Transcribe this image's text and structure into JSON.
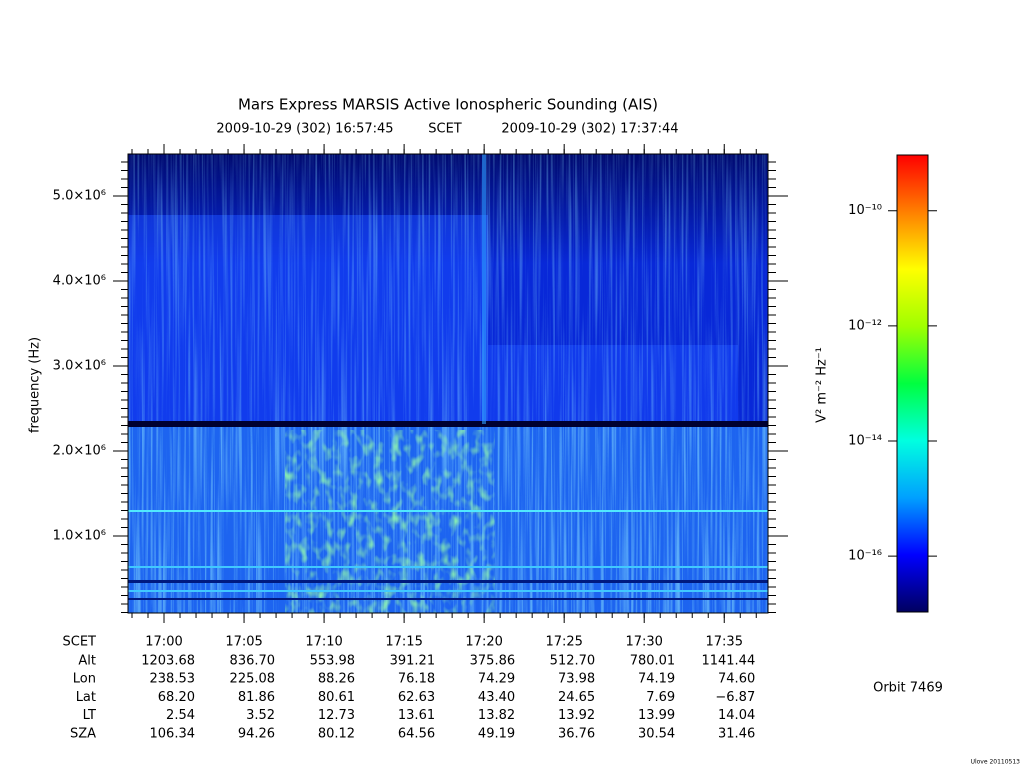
{
  "chart_data": {
    "type": "spectrogram",
    "title": "Mars Express MARSIS Active Ionospheric Sounding (AIS)",
    "subtitle": {
      "start": "2009-10-29 (302) 16:57:45",
      "system": "SCET",
      "end": "2009-10-29 (302) 17:37:44"
    },
    "y_label": "frequency (Hz)",
    "ylim": [
      94000,
      5494000
    ],
    "yticks": [
      {
        "value": 1000000,
        "label": "1.0×10⁶"
      },
      {
        "value": 2000000,
        "label": "2.0×10⁶"
      },
      {
        "value": 3000000,
        "label": "3.0×10⁶"
      },
      {
        "value": 4000000,
        "label": "4.0×10⁶"
      },
      {
        "value": 5000000,
        "label": "5.0×10⁶"
      }
    ],
    "xlim": [
      61065,
      63464
    ],
    "xticks": [
      {
        "value": 61200,
        "label": "17:00"
      },
      {
        "value": 61500,
        "label": "17:05"
      },
      {
        "value": 61800,
        "label": "17:10"
      },
      {
        "value": 62100,
        "label": "17:15"
      },
      {
        "value": 62400,
        "label": "17:20"
      },
      {
        "value": 62700,
        "label": "17:25"
      },
      {
        "value": 63000,
        "label": "17:30"
      },
      {
        "value": 63300,
        "label": "17:35"
      }
    ],
    "colorbar": {
      "label": "V² m⁻² Hz⁻¹",
      "log_scale": true,
      "zlim": [
        1.07e-17,
        9.3e-10
      ],
      "ticks": [
        {
          "value": 1e-10,
          "label": "10⁻¹⁰"
        },
        {
          "value": 1e-12,
          "label": "10⁻¹²"
        },
        {
          "value": 1e-14,
          "label": "10⁻¹⁴"
        },
        {
          "value": 1e-16,
          "label": "10⁻¹⁶"
        }
      ],
      "colors": [
        "#000060",
        "#0000ff",
        "#00a0ff",
        "#00ffe0",
        "#00ff40",
        "#a0ff00",
        "#ffff00",
        "#ff8000",
        "#ff0000"
      ]
    },
    "ephemeris": {
      "time_label": "SCET",
      "rows": [
        {
          "name": "Alt",
          "values": [
            "1203.68",
            "836.70",
            "553.98",
            "391.21",
            "375.86",
            "512.70",
            "780.01",
            "1141.44"
          ]
        },
        {
          "name": "Lon",
          "values": [
            "238.53",
            "225.08",
            "88.26",
            "76.18",
            "74.29",
            "73.98",
            "74.19",
            "74.60"
          ]
        },
        {
          "name": "Lat",
          "values": [
            "68.20",
            "81.86",
            "80.61",
            "62.63",
            "43.40",
            "24.65",
            "7.69",
            "−6.87"
          ]
        },
        {
          "name": "LT",
          "values": [
            "2.54",
            "3.52",
            "12.73",
            "13.61",
            "13.82",
            "13.92",
            "13.99",
            "14.04"
          ]
        },
        {
          "name": "SZA",
          "values": [
            "106.34",
            "94.26",
            "80.12",
            "64.56",
            "49.19",
            "36.76",
            "30.54",
            "31.46"
          ]
        }
      ]
    },
    "orbit": "Orbit 7469",
    "credit": "Ulove 20110513"
  }
}
